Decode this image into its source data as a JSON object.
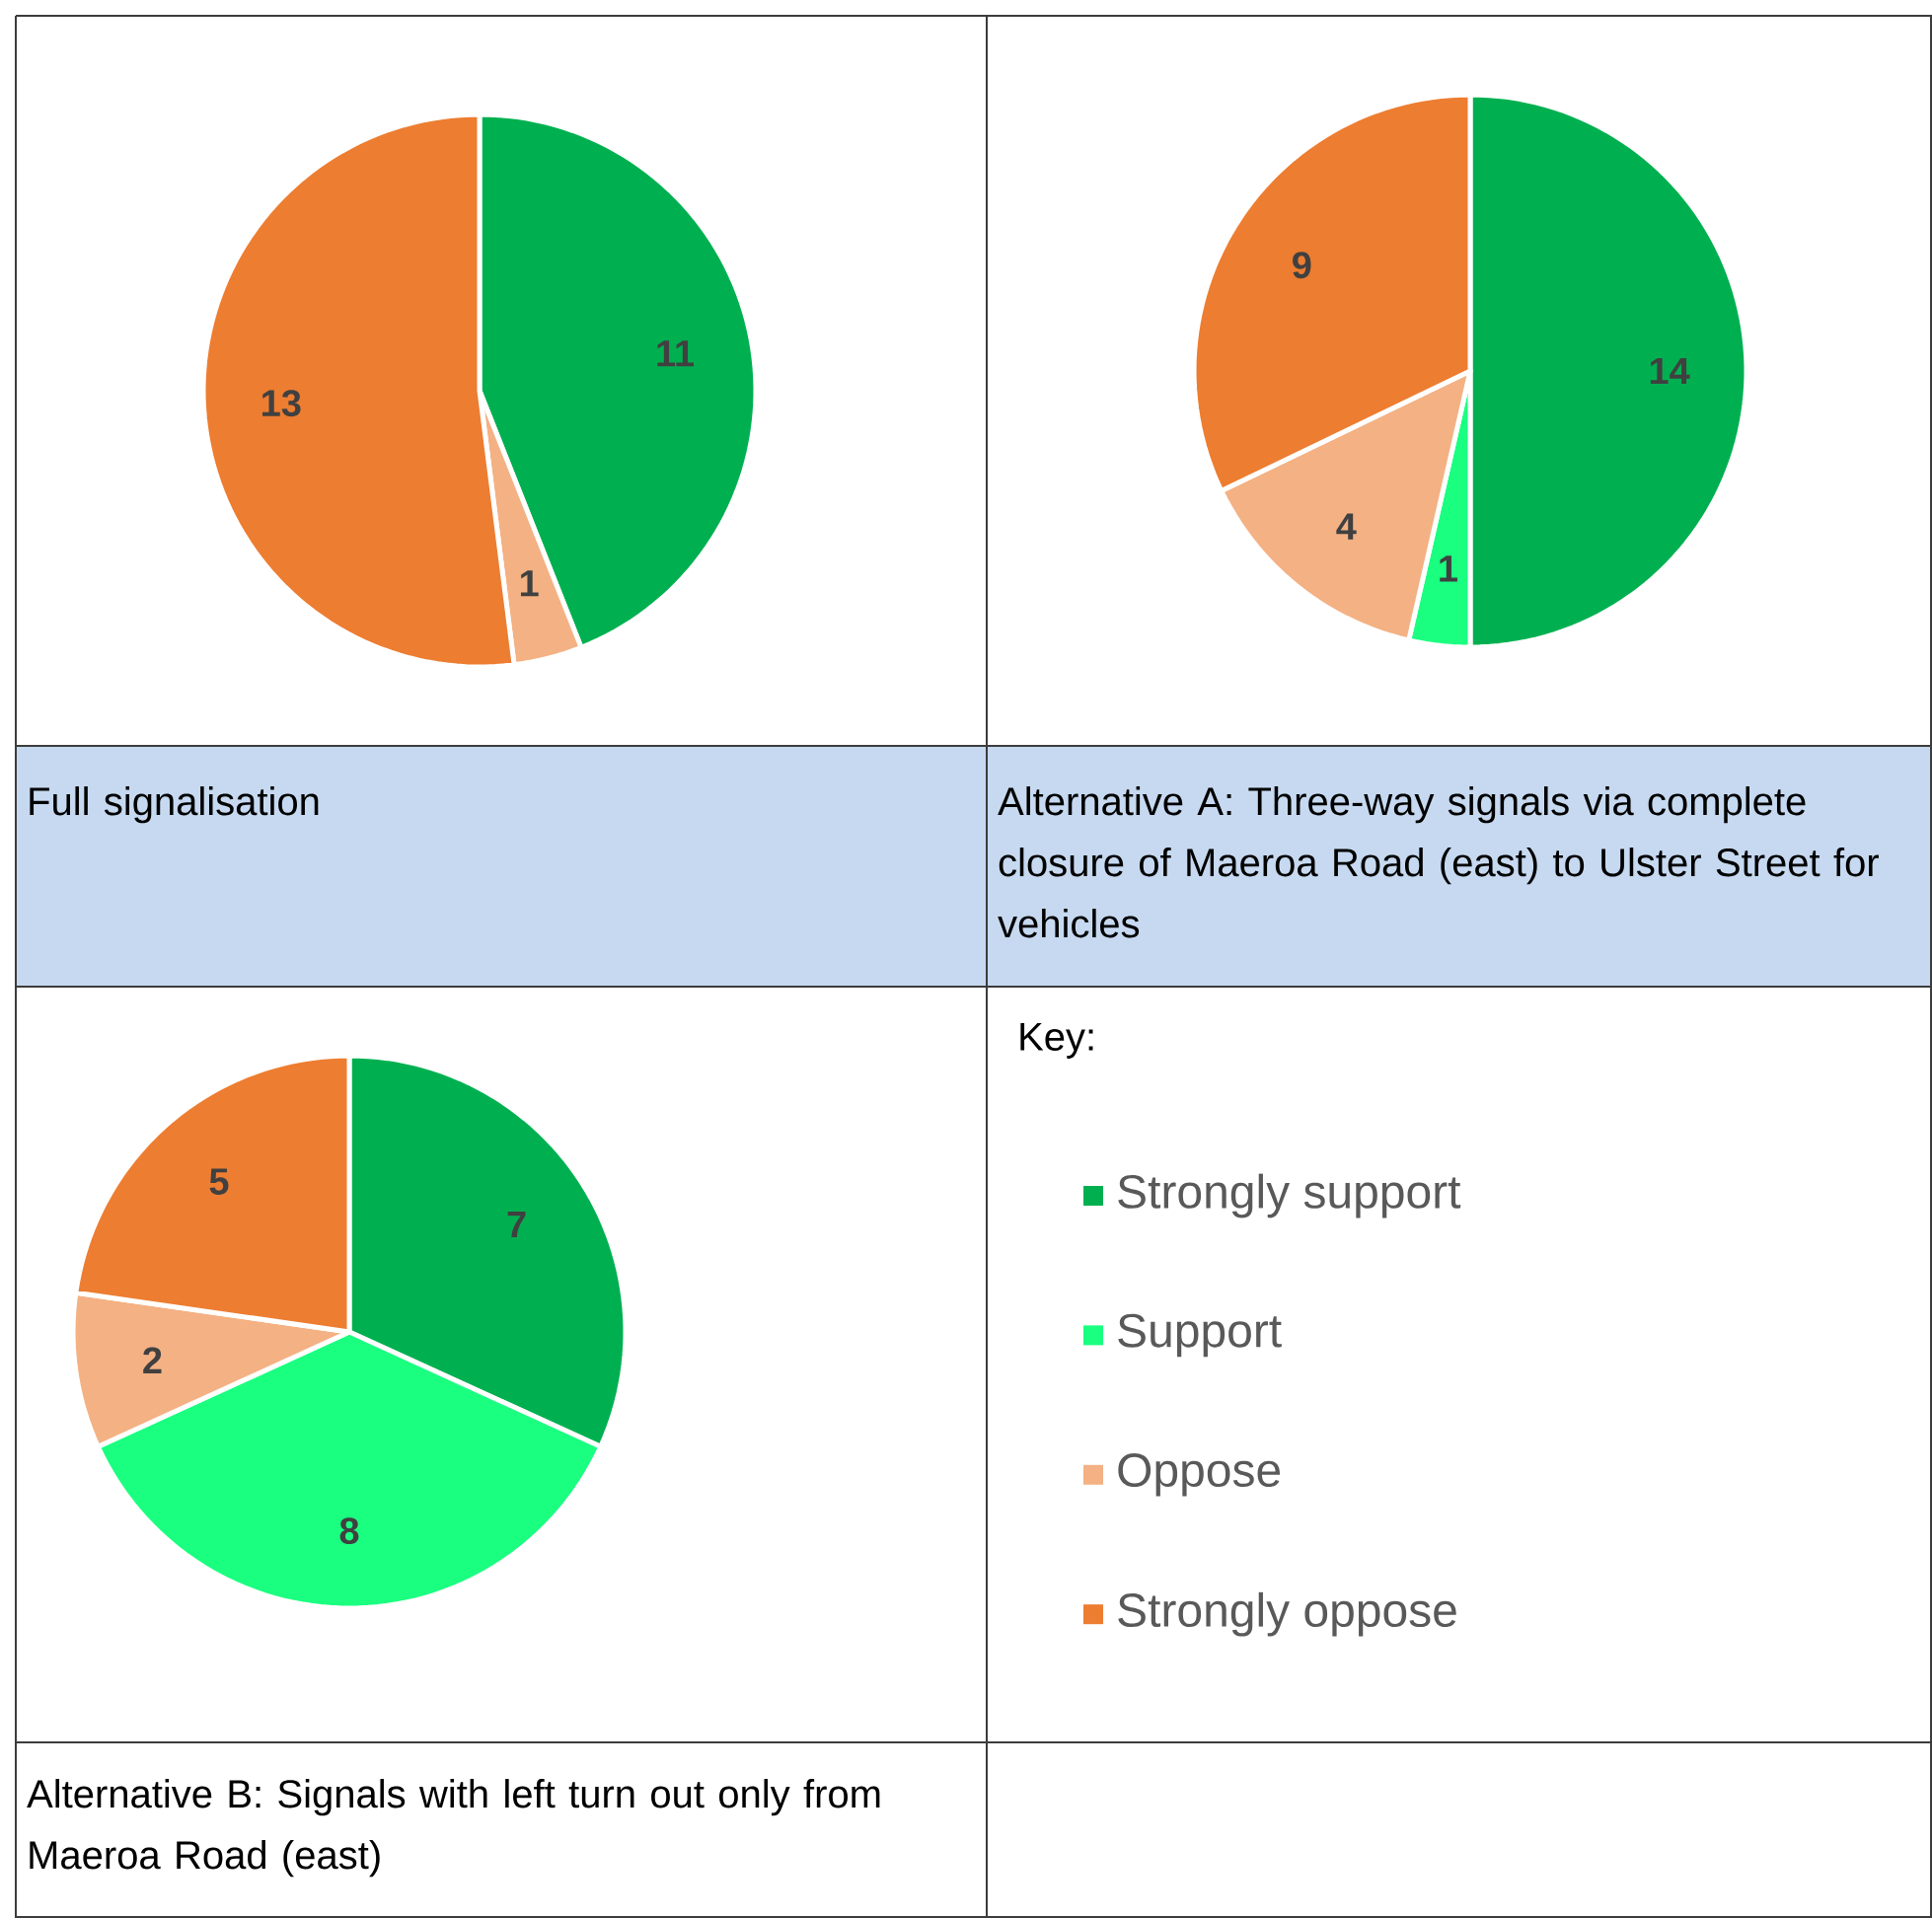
{
  "chart_data": [
    {
      "type": "pie",
      "title": "Full signalisation",
      "categories": [
        null,
        null,
        null
      ],
      "values": [
        11,
        1,
        13
      ],
      "colors": [
        "#00b050",
        "#f4b183",
        "#ed7d31"
      ],
      "data_labels": true
    },
    {
      "type": "pie",
      "title": "Alternative A:  Three-way signals via complete closure of Maeroa Road (east) to Ulster Street for vehicles",
      "categories": [
        null,
        null,
        null,
        null
      ],
      "values": [
        14,
        1,
        4,
        9
      ],
      "colors": [
        "#00b050",
        "#1aff80",
        "#f4b183",
        "#ed7d31"
      ],
      "data_labels": true
    },
    {
      "type": "pie",
      "title": "Alternative B: Signals with left turn out only from Maeroa Road (east)",
      "categories": [
        "Strongly support",
        "Support",
        "Oppose",
        "Strongly oppose"
      ],
      "values": [
        7,
        8,
        2,
        5
      ],
      "colors": [
        "#00b050",
        "#1aff80",
        "#f4b183",
        "#ed7d31"
      ],
      "data_labels": true,
      "legend": "right",
      "legend_title": "Key:"
    }
  ]
}
